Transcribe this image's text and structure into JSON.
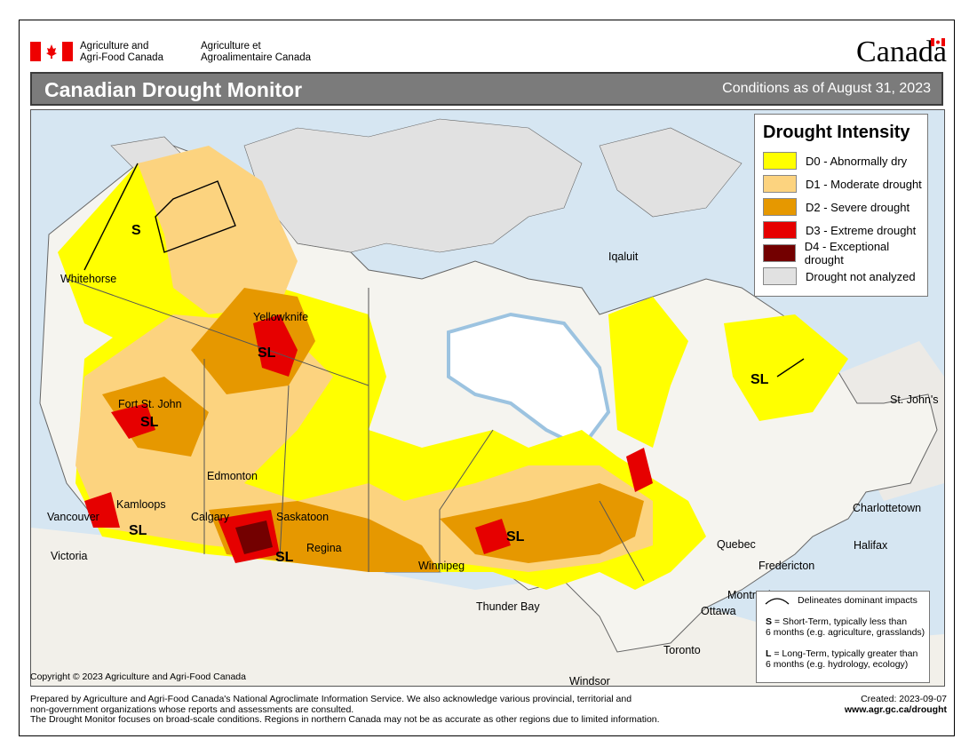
{
  "header": {
    "dept_en_1": "Agriculture and",
    "dept_en_2": "Agri-Food Canada",
    "dept_fr_1": "Agriculture et",
    "dept_fr_2": "Agroalimentaire Canada",
    "wordmark": "Canadä"
  },
  "title": "Canadian Drought Monitor",
  "conditions": "Conditions as of August 31, 2023",
  "legend": {
    "title": "Drought Intensity",
    "items": [
      {
        "label": "D0 - Abnormally dry",
        "color": "#ffff00"
      },
      {
        "label": "D1 - Moderate drought",
        "color": "#fcd37f"
      },
      {
        "label": "D2 - Severe drought",
        "color": "#e69800"
      },
      {
        "label": "D3 - Extreme drought",
        "color": "#e60000"
      },
      {
        "label": "D4 - Exceptional drought",
        "color": "#730000"
      },
      {
        "label": "Drought not analyzed",
        "color": "#e1e1e1"
      }
    ]
  },
  "impacts": {
    "line_label": "Delineates dominant impacts",
    "s_key": "S",
    "s_text_1": " = Short-Term, typically less than",
    "s_text_2": "6 months (e.g. agriculture, grasslands)",
    "l_key": "L",
    "l_text_1": " = Long-Term, typically greater  than",
    "l_text_2": "6 months (e.g. hydrology, ecology)"
  },
  "cities": {
    "whitehorse": "Whitehorse",
    "yellowknife": "Yellowknife",
    "iqaluit": "Iqaluit",
    "fort_st_john": "Fort St. John",
    "edmonton": "Edmonton",
    "kamloops": "Kamloops",
    "vancouver": "Vancouver",
    "victoria": "Victoria",
    "calgary": "Calgary",
    "saskatoon": "Saskatoon",
    "regina": "Regina",
    "winnipeg": "Winnipeg",
    "thunder_bay": "Thunder Bay",
    "quebec": "Quebec",
    "fredericton": "Fredericton",
    "halifax": "Halifax",
    "charlottetown": "Charlottetown",
    "st_johns": "St. John's",
    "montreal": "Montreal",
    "ottawa": "Ottawa",
    "toronto": "Toronto",
    "windsor": "Windsor"
  },
  "impact_labels": {
    "s": "S",
    "sl": "SL"
  },
  "copyright": "Copyright © 2023 Agriculture and Agri-Food Canada",
  "footer": {
    "line1": "Prepared by Agriculture and Agri-Food Canada's National Agroclimate Information Service.  We also acknowledge various provincial, territorial and",
    "line2": "non-government organizations whose reports and assessments are consulted.",
    "line3": "The Drought Monitor focuses on broad-scale conditions.  Regions in northern Canada may not be as accurate as other regions due to limited information.",
    "created": "Created: 2023-09-07",
    "url": "www.agr.gc.ca/drought"
  }
}
